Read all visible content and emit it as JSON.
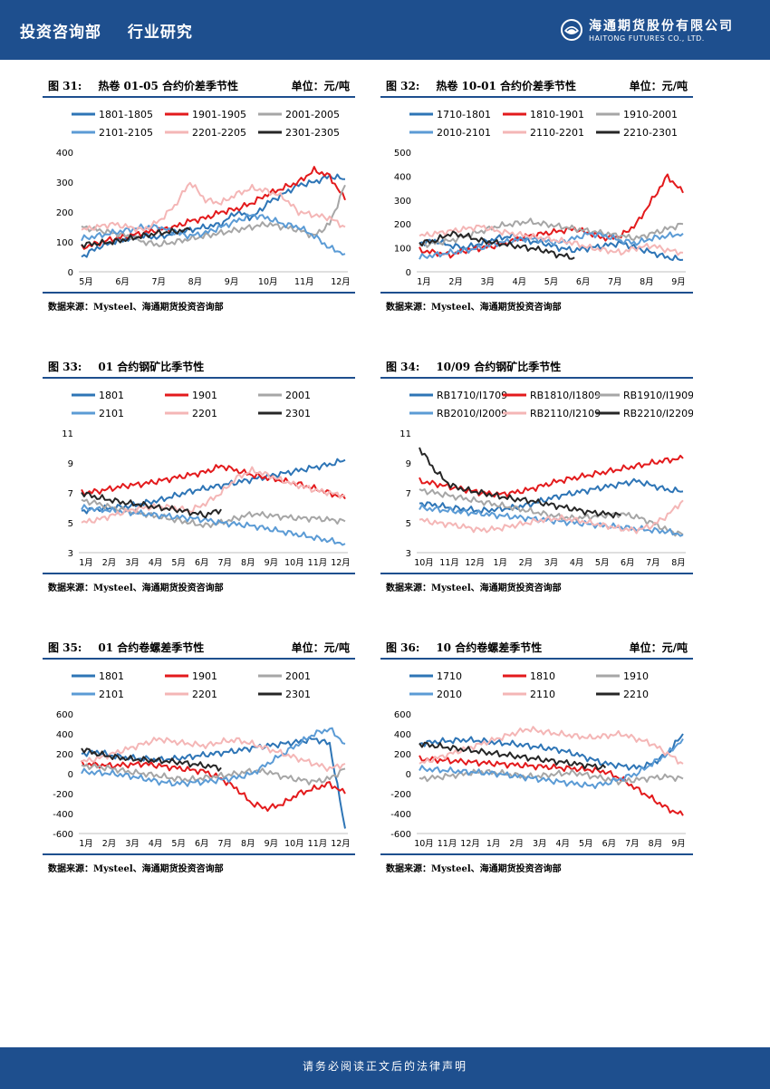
{
  "header": {
    "section": "投资咨询部",
    "category": "行业研究",
    "logo_cn": "海通期货股份有限公司",
    "logo_en": "HAITONG FUTURES CO., LTD."
  },
  "footer": {
    "disclaimer": "请务必阅读正文后的法律声明"
  },
  "colors": {
    "brand": "#1e4f8e"
  },
  "chart_data": [
    {
      "id": "c31",
      "figure_no": "图 31:",
      "title": "热卷 01-05 合约价差季节性",
      "unit": "单位：元/吨",
      "source": "数据来源：Mysteel、海通期货投资咨询部",
      "type": "line",
      "ylim": [
        0,
        400
      ],
      "yticks": [
        "0",
        "100",
        "200",
        "300",
        "400"
      ],
      "xticks": [
        "5月",
        "6月",
        "7月",
        "8月",
        "9月",
        "10月",
        "11月",
        "12月"
      ],
      "series": [
        {
          "name": "1801-1805",
          "color": "#2e75b6",
          "values": [
            50,
            80,
            100,
            110,
            120,
            115,
            130,
            140,
            150,
            160,
            200,
            180,
            230,
            260,
            290,
            300,
            320,
            310
          ]
        },
        {
          "name": "1901-1905",
          "color": "#e31a1c",
          "values": [
            80,
            95,
            110,
            120,
            130,
            140,
            150,
            170,
            180,
            200,
            210,
            230,
            260,
            280,
            300,
            340,
            320,
            240
          ]
        },
        {
          "name": "2001-2005",
          "color": "#a6a6a6",
          "values": [
            150,
            140,
            130,
            120,
            100,
            90,
            100,
            110,
            120,
            130,
            140,
            150,
            160,
            150,
            140,
            120,
            160,
            290
          ]
        },
        {
          "name": "2101-2105",
          "color": "#5b9bd5",
          "values": [
            110,
            120,
            130,
            140,
            150,
            150,
            130,
            120,
            130,
            150,
            170,
            190,
            180,
            160,
            150,
            120,
            80,
            60
          ]
        },
        {
          "name": "2201-2205",
          "color": "#f4b6b6",
          "values": [
            140,
            150,
            160,
            150,
            140,
            170,
            220,
            300,
            240,
            230,
            260,
            280,
            270,
            250,
            200,
            190,
            180,
            150
          ]
        },
        {
          "name": "2301-2305",
          "color": "#262626",
          "values": [
            90,
            95,
            100,
            110,
            120,
            130,
            135,
            140
          ]
        }
      ]
    },
    {
      "id": "c32",
      "figure_no": "图 32:",
      "title": "热卷 10-01 合约价差季节性",
      "unit": "单位：元/吨",
      "source": "数据来源：Mysteel、海通期货投资咨询部",
      "type": "line",
      "ylim": [
        0,
        500
      ],
      "yticks": [
        "0",
        "100",
        "200",
        "300",
        "400",
        "500"
      ],
      "xticks": [
        "1月",
        "2月",
        "3月",
        "4月",
        "5月",
        "6月",
        "7月",
        "8月",
        "9月"
      ],
      "series": [
        {
          "name": "1710-1801",
          "color": "#2e75b6",
          "values": [
            120,
            130,
            110,
            100,
            120,
            140,
            150,
            130,
            120,
            100,
            90,
            100,
            110,
            120,
            100,
            80,
            60,
            50
          ]
        },
        {
          "name": "1810-1901",
          "color": "#e31a1c",
          "values": [
            90,
            80,
            70,
            90,
            100,
            110,
            130,
            150,
            160,
            170,
            180,
            160,
            140,
            150,
            200,
            300,
            400,
            330
          ]
        },
        {
          "name": "1910-2001",
          "color": "#a6a6a6",
          "values": [
            110,
            120,
            130,
            150,
            170,
            190,
            200,
            210,
            200,
            190,
            180,
            170,
            160,
            150,
            140,
            160,
            180,
            200
          ]
        },
        {
          "name": "2010-2101",
          "color": "#5b9bd5",
          "values": [
            60,
            70,
            80,
            90,
            100,
            120,
            130,
            140,
            130,
            120,
            140,
            160,
            150,
            130,
            120,
            140,
            150,
            160
          ]
        },
        {
          "name": "2110-2201",
          "color": "#f4b6b6",
          "values": [
            150,
            160,
            170,
            180,
            190,
            170,
            160,
            150,
            140,
            130,
            120,
            100,
            90,
            80,
            100,
            110,
            90,
            80
          ]
        },
        {
          "name": "2210-2301",
          "color": "#262626",
          "values": [
            120,
            130,
            160,
            150,
            130,
            120,
            110,
            100,
            90,
            70,
            60
          ]
        }
      ]
    },
    {
      "id": "c33",
      "figure_no": "图 33:",
      "title": "01 合约钢矿比季节性",
      "unit": "",
      "source": "数据来源：Mysteel、海通期货投资咨询部",
      "type": "line",
      "ylim": [
        3,
        11
      ],
      "yticks": [
        "3",
        "5",
        "7",
        "9",
        "11"
      ],
      "xticks": [
        "1月",
        "2月",
        "3月",
        "4月",
        "5月",
        "6月",
        "7月",
        "8月",
        "9月",
        "10月",
        "11月",
        "12月"
      ],
      "series": [
        {
          "name": "1801",
          "color": "#2e75b6",
          "values": [
            5.8,
            5.9,
            6.0,
            6.1,
            6.3,
            6.5,
            6.8,
            7.1,
            7.3,
            7.5,
            7.7,
            7.9,
            8.1,
            8.3,
            8.5,
            8.7,
            8.9,
            9.2
          ]
        },
        {
          "name": "1901",
          "color": "#e31a1c",
          "values": [
            7.0,
            7.1,
            7.3,
            7.5,
            7.6,
            7.8,
            8.0,
            8.2,
            8.4,
            8.8,
            8.5,
            8.2,
            8.0,
            7.8,
            7.6,
            7.3,
            7.0,
            6.6
          ]
        },
        {
          "name": "2001",
          "color": "#a6a6a6",
          "values": [
            6.5,
            6.3,
            6.0,
            5.8,
            5.6,
            5.4,
            5.2,
            5.0,
            4.8,
            5.0,
            5.3,
            5.6,
            5.5,
            5.4,
            5.3,
            5.3,
            5.2,
            5.1
          ]
        },
        {
          "name": "2101",
          "color": "#5b9bd5",
          "values": [
            6.0,
            5.9,
            5.8,
            5.7,
            5.6,
            5.5,
            5.4,
            5.3,
            5.2,
            5.0,
            4.9,
            4.8,
            4.6,
            4.4,
            4.2,
            4.0,
            3.8,
            3.6
          ]
        },
        {
          "name": "2201",
          "color": "#f4b6b6",
          "values": [
            5.0,
            5.2,
            5.5,
            5.8,
            6.0,
            6.1,
            6.0,
            5.8,
            6.3,
            7.0,
            8.0,
            8.5,
            8.2,
            7.8,
            7.5,
            7.2,
            7.0,
            6.8
          ]
        },
        {
          "name": "2301",
          "color": "#262626",
          "values": [
            7.0,
            6.7,
            6.5,
            6.3,
            6.2,
            6.0,
            5.9,
            5.7,
            5.5,
            5.9
          ]
        }
      ]
    },
    {
      "id": "c34",
      "figure_no": "图 34:",
      "title": "10/09 合约钢矿比季节性",
      "unit": "",
      "source": "数据来源：Mysteel、海通期货投资咨询部",
      "type": "line",
      "ylim": [
        3,
        11
      ],
      "yticks": [
        "3",
        "5",
        "7",
        "9",
        "11"
      ],
      "xticks": [
        "10月",
        "11月",
        "12月",
        "1月",
        "2月",
        "3月",
        "4月",
        "5月",
        "6月",
        "7月",
        "8月"
      ],
      "series": [
        {
          "name": "RB1710/I1709",
          "color": "#2e75b6",
          "values": [
            6.3,
            6.2,
            6.0,
            5.9,
            5.8,
            5.9,
            6.0,
            6.2,
            6.5,
            6.8,
            7.0,
            7.2,
            7.4,
            7.6,
            7.8,
            7.5,
            7.2,
            7.1
          ]
        },
        {
          "name": "RB1810/I1809",
          "color": "#e31a1c",
          "values": [
            7.8,
            7.6,
            7.4,
            7.2,
            7.0,
            6.9,
            7.0,
            7.2,
            7.5,
            7.8,
            8.0,
            8.2,
            8.4,
            8.6,
            8.8,
            9.0,
            9.2,
            9.3
          ]
        },
        {
          "name": "RB1910/I1909",
          "color": "#a6a6a6",
          "values": [
            7.2,
            7.0,
            6.8,
            6.6,
            6.4,
            6.2,
            6.0,
            5.8,
            5.6,
            5.4,
            5.3,
            5.4,
            5.5,
            5.6,
            5.4,
            5.0,
            4.5,
            4.2
          ]
        },
        {
          "name": "RB2010/I2009",
          "color": "#5b9bd5",
          "values": [
            6.0,
            5.9,
            5.8,
            5.7,
            5.6,
            5.5,
            5.4,
            5.3,
            5.2,
            5.1,
            5.0,
            4.9,
            4.8,
            4.7,
            4.6,
            4.5,
            4.4,
            4.2
          ]
        },
        {
          "name": "RB2110/I2109",
          "color": "#f4b6b6",
          "values": [
            5.2,
            5.0,
            4.9,
            4.7,
            4.5,
            4.6,
            4.8,
            5.0,
            5.2,
            5.3,
            5.2,
            5.0,
            4.8,
            4.6,
            4.5,
            4.8,
            5.5,
            6.5
          ]
        },
        {
          "name": "RB2210/I2209",
          "color": "#262626",
          "values": [
            10.0,
            8.5,
            7.5,
            7.2,
            7.0,
            6.8,
            6.6,
            6.5,
            6.3,
            6.1,
            5.9,
            5.7,
            5.6,
            5.5
          ]
        }
      ]
    },
    {
      "id": "c35",
      "figure_no": "图 35:",
      "title": "01 合约卷螺差季节性",
      "unit": "单位：元/吨",
      "source": "数据来源：Mysteel、海通期货投资咨询部",
      "type": "line",
      "ylim": [
        -600,
        600
      ],
      "yticks": [
        "-600",
        "-400",
        "-200",
        "0",
        "200",
        "400",
        "600"
      ],
      "xticks": [
        "1月",
        "2月",
        "3月",
        "4月",
        "5月",
        "6月",
        "7月",
        "8月",
        "9月",
        "10月",
        "11月",
        "12月"
      ],
      "series": [
        {
          "name": "1801",
          "color": "#2e75b6",
          "values": [
            200,
            220,
            180,
            160,
            150,
            140,
            150,
            170,
            190,
            210,
            230,
            260,
            280,
            300,
            320,
            350,
            300,
            -550
          ]
        },
        {
          "name": "1901",
          "color": "#e31a1c",
          "values": [
            100,
            90,
            80,
            90,
            100,
            80,
            60,
            40,
            20,
            -50,
            -150,
            -300,
            -350,
            -300,
            -200,
            -150,
            -100,
            -200
          ]
        },
        {
          "name": "2001",
          "color": "#a6a6a6",
          "values": [
            80,
            70,
            50,
            20,
            0,
            -20,
            -50,
            -60,
            -40,
            -20,
            0,
            30,
            20,
            -30,
            -60,
            -80,
            -50,
            50
          ]
        },
        {
          "name": "2101",
          "color": "#5b9bd5",
          "values": [
            20,
            10,
            0,
            -20,
            -50,
            -80,
            -100,
            -90,
            -80,
            -60,
            -40,
            0,
            100,
            200,
            300,
            400,
            450,
            300
          ]
        },
        {
          "name": "2201",
          "color": "#f4b6b6",
          "values": [
            120,
            150,
            200,
            250,
            300,
            350,
            320,
            300,
            280,
            320,
            340,
            300,
            250,
            200,
            150,
            100,
            50,
            100
          ]
        },
        {
          "name": "2301",
          "color": "#262626",
          "values": [
            250,
            200,
            170,
            150,
            140,
            130,
            120,
            100,
            80,
            60
          ]
        }
      ]
    },
    {
      "id": "c36",
      "figure_no": "图 36:",
      "title": "10 合约卷螺差季节性",
      "unit": "单位：元/吨",
      "source": "数据来源：Mysteel、海通期货投资咨询部",
      "type": "line",
      "ylim": [
        -600,
        600
      ],
      "yticks": [
        "-600",
        "-400",
        "-200",
        "0",
        "200",
        "400",
        "600"
      ],
      "xticks": [
        "10月",
        "11月",
        "12月",
        "1月",
        "2月",
        "3月",
        "4月",
        "5月",
        "6月",
        "7月",
        "8月",
        "9月"
      ],
      "series": [
        {
          "name": "1710",
          "color": "#2e75b6",
          "values": [
            300,
            320,
            330,
            340,
            330,
            310,
            300,
            280,
            260,
            240,
            200,
            150,
            100,
            80,
            60,
            100,
            200,
            400
          ]
        },
        {
          "name": "1810",
          "color": "#e31a1c",
          "values": [
            150,
            140,
            130,
            120,
            110,
            100,
            90,
            80,
            70,
            60,
            50,
            40,
            20,
            -50,
            -150,
            -250,
            -350,
            -420
          ]
        },
        {
          "name": "1910",
          "color": "#a6a6a6",
          "values": [
            -50,
            -40,
            -20,
            0,
            20,
            10,
            -10,
            -30,
            -20,
            0,
            10,
            -20,
            -50,
            -80,
            -60,
            -40,
            -30,
            -50
          ]
        },
        {
          "name": "2010",
          "color": "#5b9bd5",
          "values": [
            50,
            40,
            30,
            20,
            10,
            0,
            -20,
            -40,
            -60,
            -80,
            -100,
            -120,
            -100,
            -50,
            0,
            100,
            200,
            350
          ]
        },
        {
          "name": "2110",
          "color": "#f4b6b6",
          "values": [
            100,
            150,
            200,
            250,
            300,
            350,
            400,
            450,
            420,
            400,
            380,
            360,
            380,
            400,
            350,
            300,
            200,
            100
          ]
        },
        {
          "name": "2210",
          "color": "#262626",
          "values": [
            300,
            280,
            260,
            240,
            220,
            200,
            180,
            160,
            140,
            120,
            100,
            80,
            60
          ]
        }
      ]
    }
  ]
}
